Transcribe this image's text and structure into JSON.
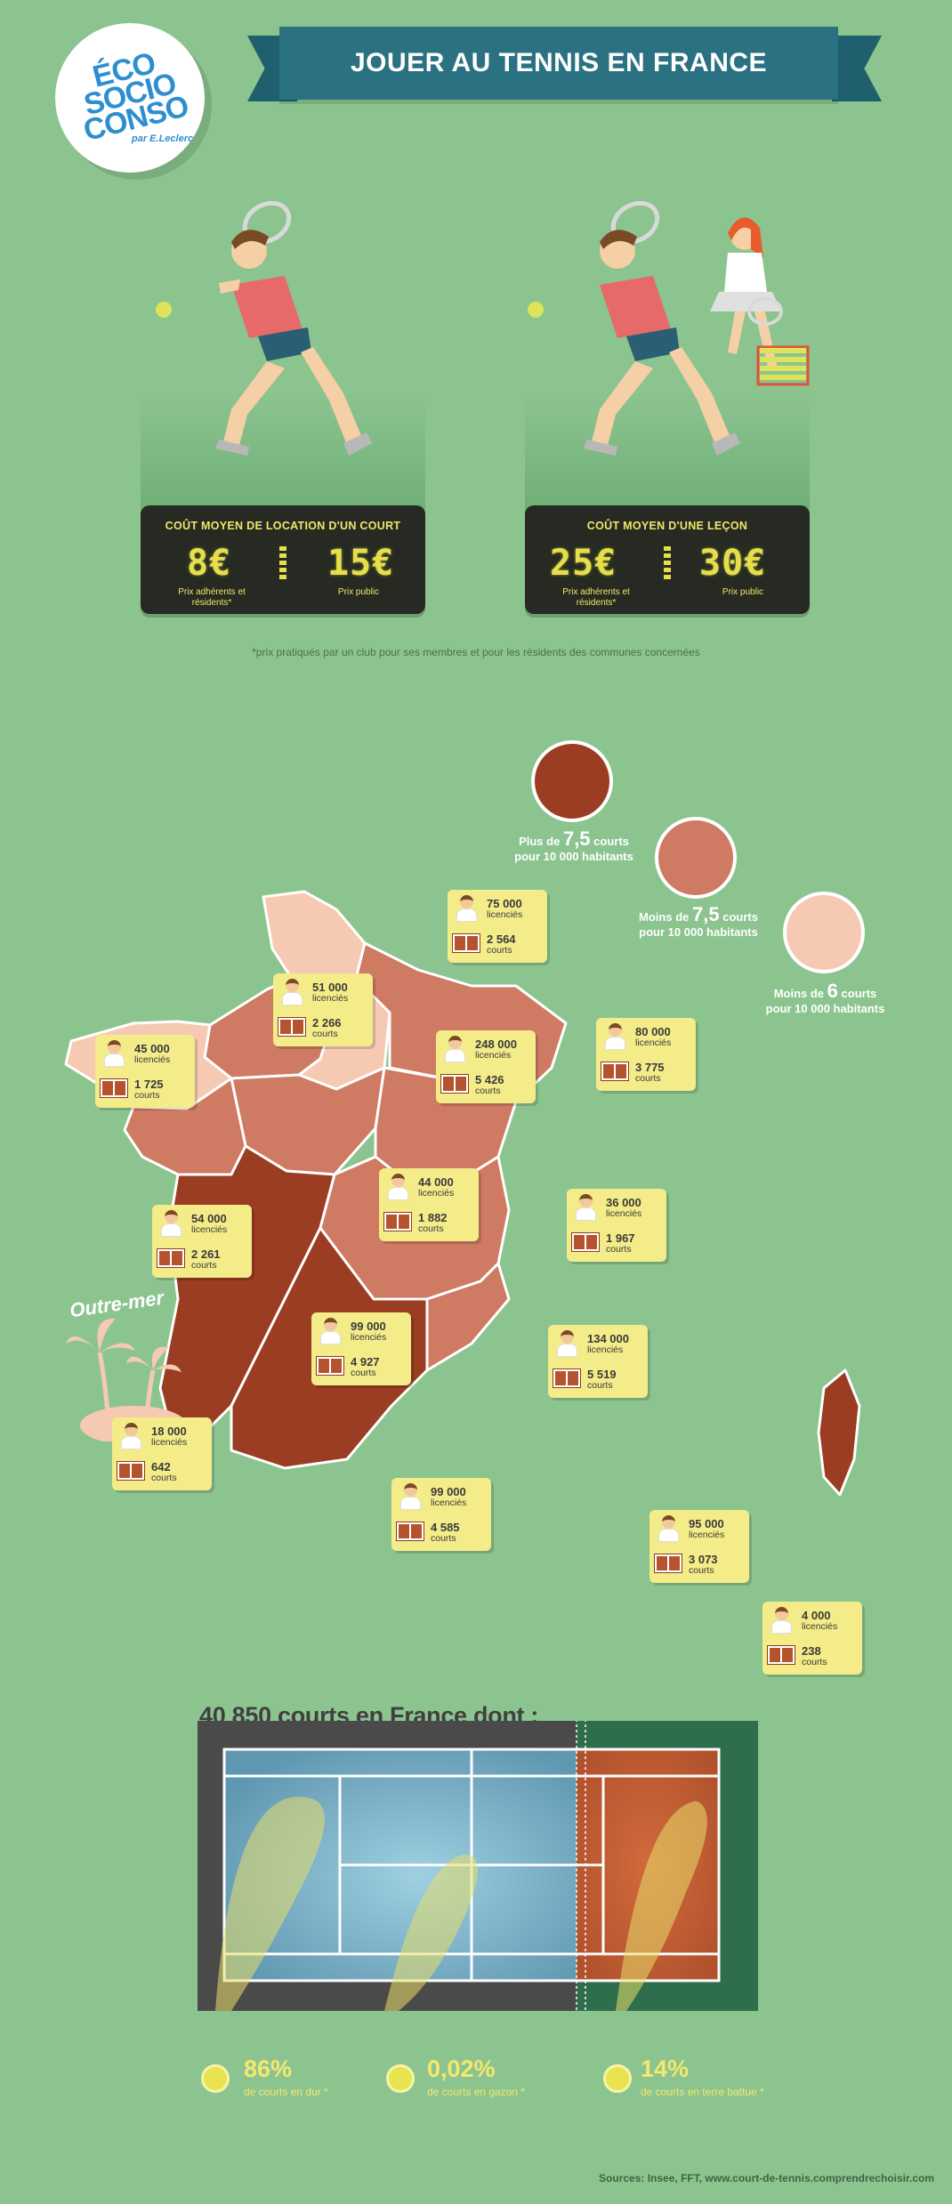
{
  "logo": {
    "line1": "ÉCO",
    "line2": "SOCIO",
    "line3": "CONSO",
    "sub": "par E.Leclerc"
  },
  "title": "JOUER AU TENNIS EN FRANCE",
  "court_rental": {
    "title": "COÛT MOYEN DE LOCATION D'UN COURT",
    "member_price": "8€",
    "public_price": "15€",
    "member_label": "Prix adhérents et résidents*",
    "public_label": "Prix public"
  },
  "lesson": {
    "title": "COÛT MOYEN D'UNE LEÇON",
    "member_price": "25€",
    "public_price": "30€",
    "member_label": "Prix adhérents et résidents*",
    "public_label": "Prix public"
  },
  "footnote": "*prix pratiqués par un club pour ses membres et pour les résidents des communes concernées",
  "legend": [
    {
      "prefix": "Plus de",
      "value": "7,5",
      "unit": "courts",
      "rest": "pour 10 000 habitants",
      "color": "#9b3d22"
    },
    {
      "prefix": "Moins de",
      "value": "7,5",
      "unit": "courts",
      "rest": "pour 10 000 habitants",
      "color": "#cf7a62"
    },
    {
      "prefix": "Moins de",
      "value": "6",
      "unit": "courts",
      "rest": "pour 10 000 habitants",
      "color": "#f6c9b3"
    }
  ],
  "regions": [
    {
      "licencies": "75 000",
      "courts": "2 564"
    },
    {
      "licencies": "51 000",
      "courts": "2 266"
    },
    {
      "licencies": "45 000",
      "courts": "1 725"
    },
    {
      "licencies": "248 000",
      "courts": "5 426"
    },
    {
      "licencies": "80 000",
      "courts": "3 775"
    },
    {
      "licencies": "44 000",
      "courts": "1 882"
    },
    {
      "licencies": "54 000",
      "courts": "2 261"
    },
    {
      "licencies": "36 000",
      "courts": "1 967"
    },
    {
      "licencies": "99 000",
      "courts": "4 927"
    },
    {
      "licencies": "134 000",
      "courts": "5 519"
    },
    {
      "licencies": "18 000",
      "courts": "642"
    },
    {
      "licencies": "99 000",
      "courts": "4 585"
    },
    {
      "licencies": "95 000",
      "courts": "3 073"
    },
    {
      "licencies": "4 000",
      "courts": "238"
    }
  ],
  "labels": {
    "licencies": "licenciés",
    "courts": "courts"
  },
  "outremer": "Outre-mer",
  "courts_title": "40 850 courts en France dont :",
  "surfaces": [
    {
      "pct": "86%",
      "label": "de courts en dur *"
    },
    {
      "pct": "0,02%",
      "label": "de courts en gazon *"
    },
    {
      "pct": "14%",
      "label": "de courts en terre battue *"
    }
  ],
  "sources": "Sources: Insee, FFT, www.court-de-tennis.comprendrechoisir.com",
  "colors": {
    "background": "#8cc48f",
    "dark_red": "#9b3d22",
    "mid_red": "#cf7a62",
    "light": "#f6c9b3",
    "banner": "#2a7181",
    "card": "#f3ec88"
  }
}
